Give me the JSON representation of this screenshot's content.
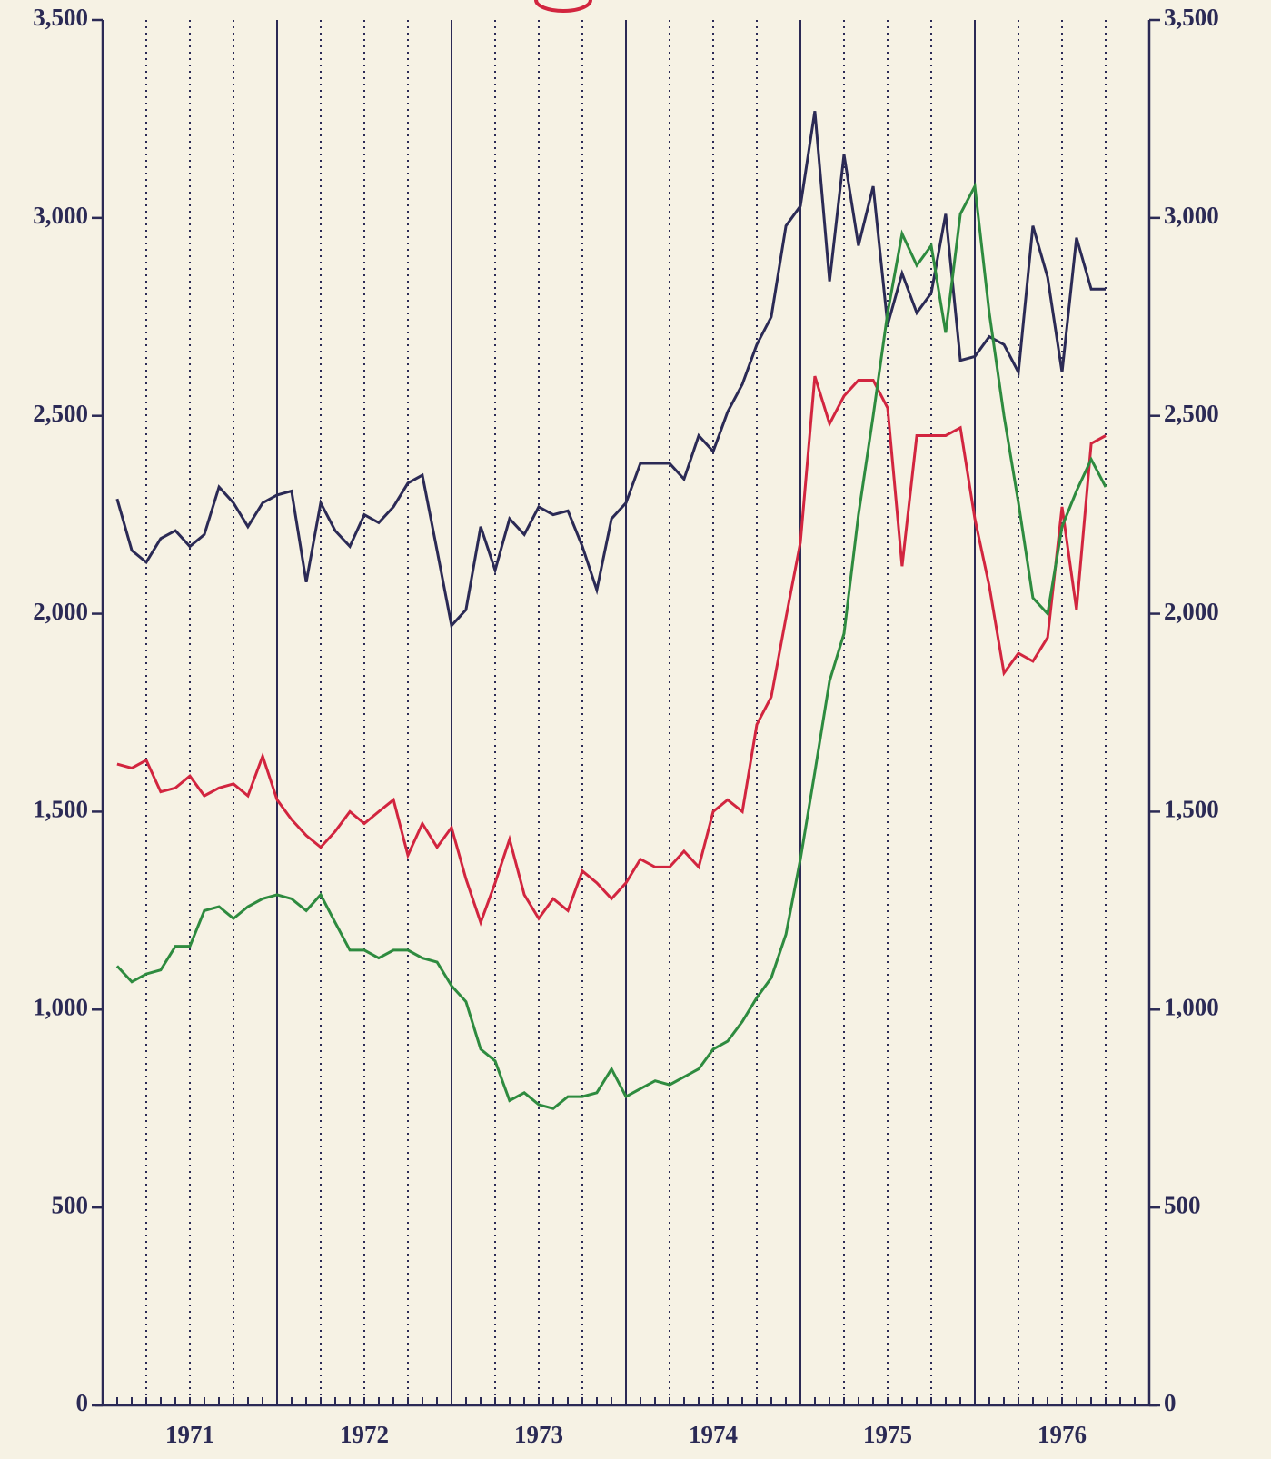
{
  "chart_data": {
    "type": "line",
    "x": [
      1971.083,
      1971.167,
      1971.25,
      1971.333,
      1971.417,
      1971.5,
      1971.583,
      1971.667,
      1971.75,
      1971.833,
      1971.917,
      1972,
      1972.083,
      1972.167,
      1972.25,
      1972.333,
      1972.417,
      1972.5,
      1972.583,
      1972.667,
      1972.75,
      1972.833,
      1972.917,
      1973,
      1973.083,
      1973.167,
      1973.25,
      1973.333,
      1973.417,
      1973.5,
      1973.583,
      1973.667,
      1973.75,
      1973.833,
      1973.917,
      1974,
      1974.083,
      1974.167,
      1974.25,
      1974.333,
      1974.417,
      1974.5,
      1974.583,
      1974.667,
      1974.75,
      1974.833,
      1974.917,
      1975,
      1975.083,
      1975.167,
      1975.25,
      1975.333,
      1975.417,
      1975.5,
      1975.583,
      1975.667,
      1975.75,
      1975.833,
      1975.917,
      1976,
      1976.083,
      1976.167,
      1976.25,
      1976.333,
      1976.417,
      1976.5,
      1976.583,
      1976.667,
      1976.75
    ],
    "series": [
      {
        "color": "#2b2a55",
        "values": [
          2290,
          2160,
          2130,
          2190,
          2210,
          2170,
          2200,
          2320,
          2280,
          2220,
          2280,
          2300,
          2310,
          2080,
          2280,
          2210,
          2170,
          2250,
          2230,
          2270,
          2330,
          2350,
          2160,
          1970,
          2010,
          2220,
          2110,
          2240,
          2200,
          2270,
          2250,
          2260,
          2170,
          2060,
          2240,
          2280,
          2380,
          2380,
          2380,
          2340,
          2450,
          2410,
          2510,
          2580,
          2680,
          2750,
          2980,
          3030,
          3270,
          2840,
          3160,
          2930,
          3080,
          2730,
          2860,
          2760,
          2810,
          3010,
          2640,
          2650,
          2700,
          2680,
          2610,
          2980,
          2850,
          2610,
          2950,
          2820,
          2820
        ]
      },
      {
        "color": "#d2253f",
        "values": [
          1620,
          1610,
          1630,
          1550,
          1560,
          1590,
          1540,
          1560,
          1570,
          1540,
          1640,
          1530,
          1480,
          1440,
          1410,
          1450,
          1500,
          1470,
          1500,
          1530,
          1390,
          1470,
          1410,
          1460,
          1330,
          1220,
          1320,
          1430,
          1290,
          1230,
          1280,
          1250,
          1350,
          1320,
          1280,
          1320,
          1380,
          1360,
          1360,
          1400,
          1360,
          1500,
          1530,
          1500,
          1720,
          1790,
          1990,
          2180,
          2600,
          2480,
          2550,
          2590,
          2590,
          2520,
          2120,
          2450,
          2450,
          2450,
          2470,
          2240,
          2070,
          1850,
          1900,
          1880,
          1940,
          2270,
          2010,
          2430,
          2450
        ]
      },
      {
        "color": "#2e8b3f",
        "values": [
          1110,
          1070,
          1090,
          1100,
          1160,
          1160,
          1250,
          1260,
          1230,
          1260,
          1280,
          1290,
          1280,
          1250,
          1290,
          1220,
          1150,
          1150,
          1130,
          1150,
          1150,
          1130,
          1120,
          1060,
          1020,
          900,
          870,
          770,
          790,
          760,
          750,
          780,
          780,
          790,
          850,
          780,
          800,
          820,
          810,
          830,
          850,
          900,
          920,
          970,
          1030,
          1080,
          1190,
          1380,
          1600,
          1830,
          1950,
          2250,
          2500,
          2760,
          2960,
          2880,
          2930,
          2710,
          3010,
          3080,
          2760,
          2500,
          2280,
          2040,
          2000,
          2220,
          2310,
          2390,
          2320
        ]
      }
    ],
    "xlim": [
      1971,
      1977
    ],
    "xticks": [
      {
        "value": 1971.5,
        "label": "1971"
      },
      {
        "value": 1972.5,
        "label": "1972"
      },
      {
        "value": 1973.5,
        "label": "1973"
      },
      {
        "value": 1974.5,
        "label": "1974"
      },
      {
        "value": 1975.5,
        "label": "1975"
      },
      {
        "value": 1976.5,
        "label": "1976"
      }
    ],
    "ylim": [
      0,
      3500
    ],
    "yticks": [
      0,
      500,
      {
        "value": 1000,
        "label": "1,000"
      },
      {
        "value": 1500,
        "label": "1,500"
      },
      {
        "value": 2000,
        "label": "2,000"
      },
      {
        "value": 2500,
        "label": "2,500"
      },
      {
        "value": 3000,
        "label": "3,000"
      },
      {
        "value": 3500,
        "label": "3,500"
      }
    ],
    "grid": true
  }
}
